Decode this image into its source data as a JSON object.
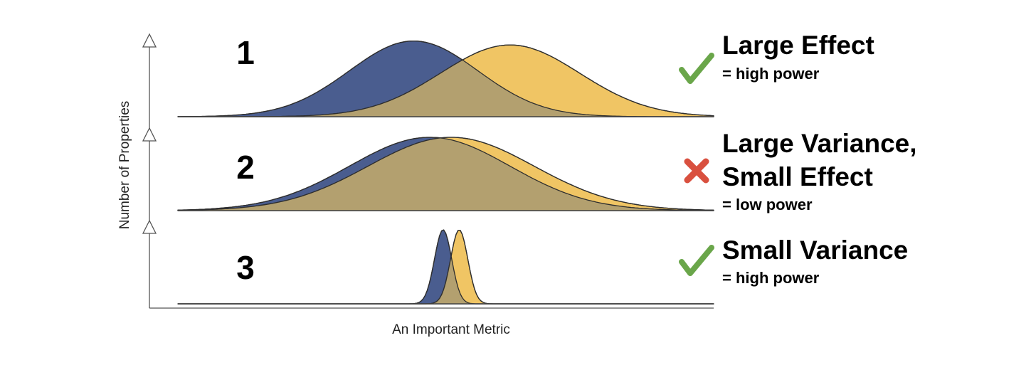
{
  "chart_data": {
    "type": "area",
    "xlabel": "An Important Metric",
    "ylabel": "Number of Properties",
    "colors": {
      "blue": "#4a5d8f",
      "yellow": "#f0c564",
      "overlap": "#b3a06f"
    },
    "panels": [
      {
        "number": "1",
        "mark": "check",
        "headline": [
          "Large Effect"
        ],
        "subline": "= high power",
        "series": [
          {
            "color": "blue",
            "mean": 0.44,
            "sd": 0.12,
            "amp": 0.95
          },
          {
            "color": "yellow",
            "mean": 0.62,
            "sd": 0.13,
            "amp": 0.9
          }
        ]
      },
      {
        "number": "2",
        "mark": "cross",
        "headline": [
          "Large Variance,",
          "Small Effect"
        ],
        "subline": "= low power",
        "series": [
          {
            "color": "blue",
            "mean": 0.47,
            "sd": 0.15,
            "amp": 0.92
          },
          {
            "color": "yellow",
            "mean": 0.51,
            "sd": 0.155,
            "amp": 0.92
          }
        ]
      },
      {
        "number": "3",
        "mark": "check",
        "headline": [
          "Small Variance"
        ],
        "subline": "= high power",
        "series": [
          {
            "color": "blue",
            "mean": 0.495,
            "sd": 0.016,
            "amp": 0.93
          },
          {
            "color": "yellow",
            "mean": 0.525,
            "sd": 0.016,
            "amp": 0.93
          }
        ]
      }
    ]
  }
}
